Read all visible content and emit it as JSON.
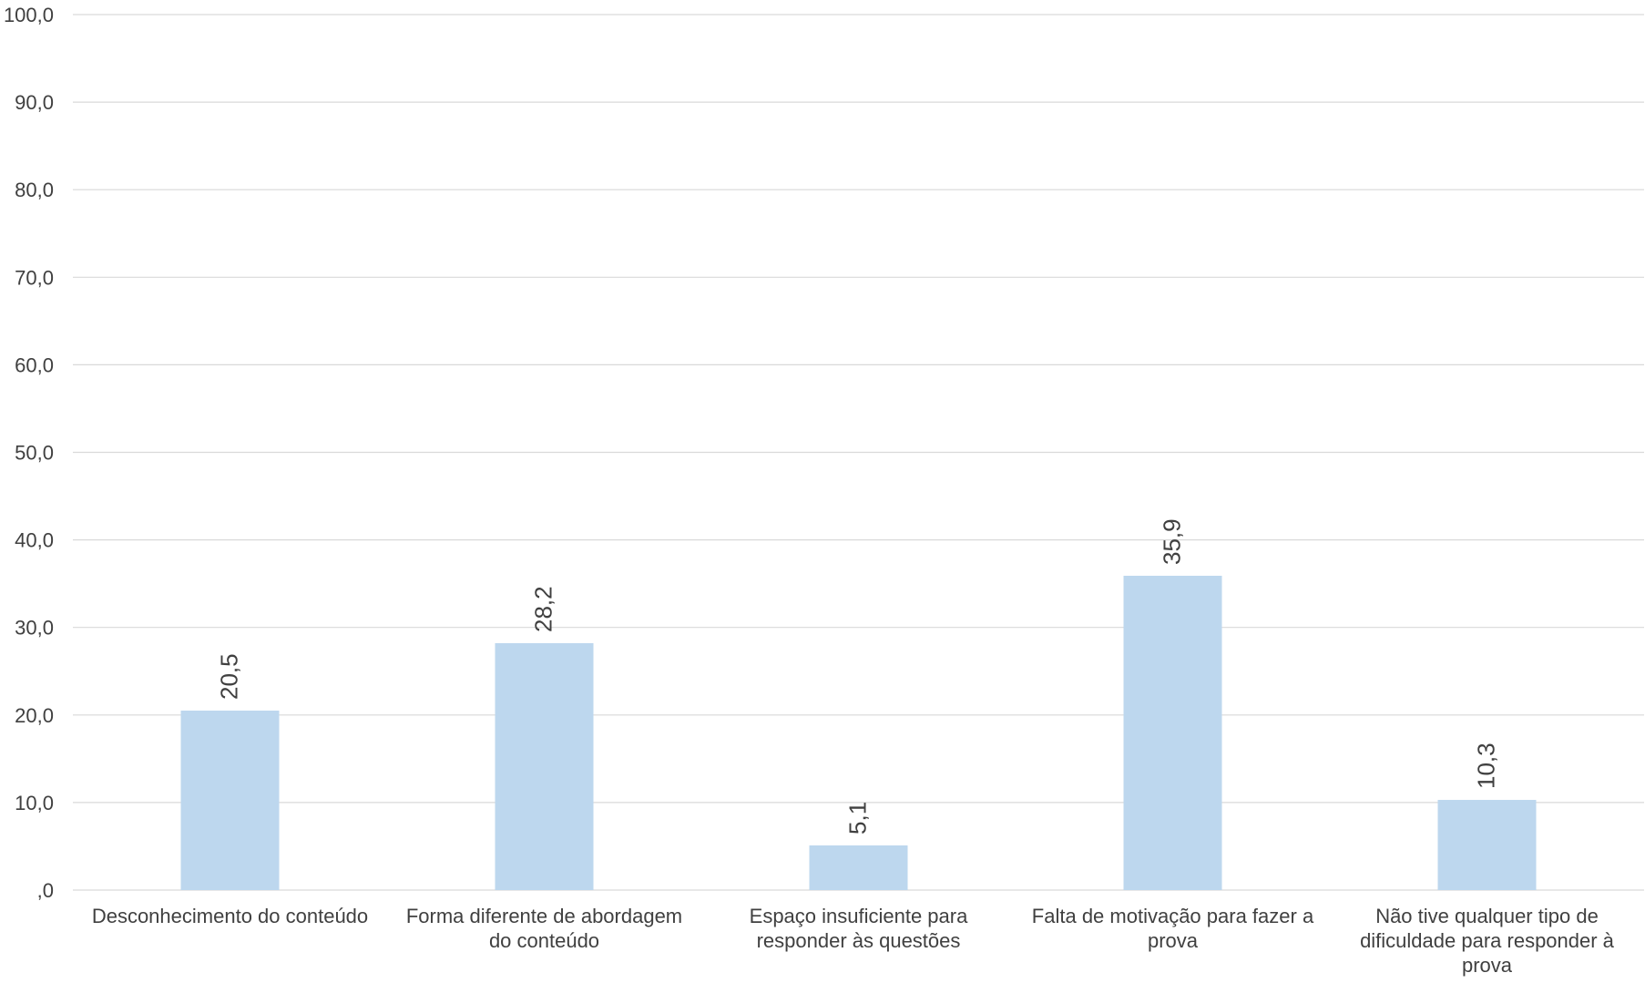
{
  "chart_data": {
    "type": "bar",
    "title": "",
    "xlabel": "",
    "ylabel": "",
    "categories": [
      "Desconhecimento do conteúdo",
      "Forma diferente de abordagem do conteúdo",
      "Espaço insuficiente para responder às questões",
      "Falta de motivação para fazer a prova",
      "Não tive qualquer tipo de dificuldade para responder à prova"
    ],
    "category_lines": [
      [
        "Desconhecimento do conteúdo"
      ],
      [
        "Forma diferente de abordagem",
        "do conteúdo"
      ],
      [
        "Espaço insuficiente para",
        "responder às questões"
      ],
      [
        "Falta de motivação para fazer a",
        "prova"
      ],
      [
        "Não tive qualquer tipo de",
        "dificuldade para responder à",
        "prova"
      ]
    ],
    "values": [
      20.5,
      28.2,
      5.1,
      35.9,
      10.3
    ],
    "data_labels": [
      "20,5",
      "28,2",
      "5,1",
      "35,9",
      "10,3"
    ],
    "ylim": [
      0,
      100
    ],
    "y_ticks": [
      0,
      10,
      20,
      30,
      40,
      50,
      60,
      70,
      80,
      90,
      100
    ],
    "y_tick_labels": [
      ",0",
      "10,0",
      "20,0",
      "30,0",
      "40,0",
      "50,0",
      "60,0",
      "70,0",
      "80,0",
      "90,0",
      "100,0"
    ],
    "grid": true,
    "legend": "none",
    "colors": {
      "bar": "#bdd7ee",
      "grid": "#d9d9d9",
      "text": "#404040"
    }
  }
}
